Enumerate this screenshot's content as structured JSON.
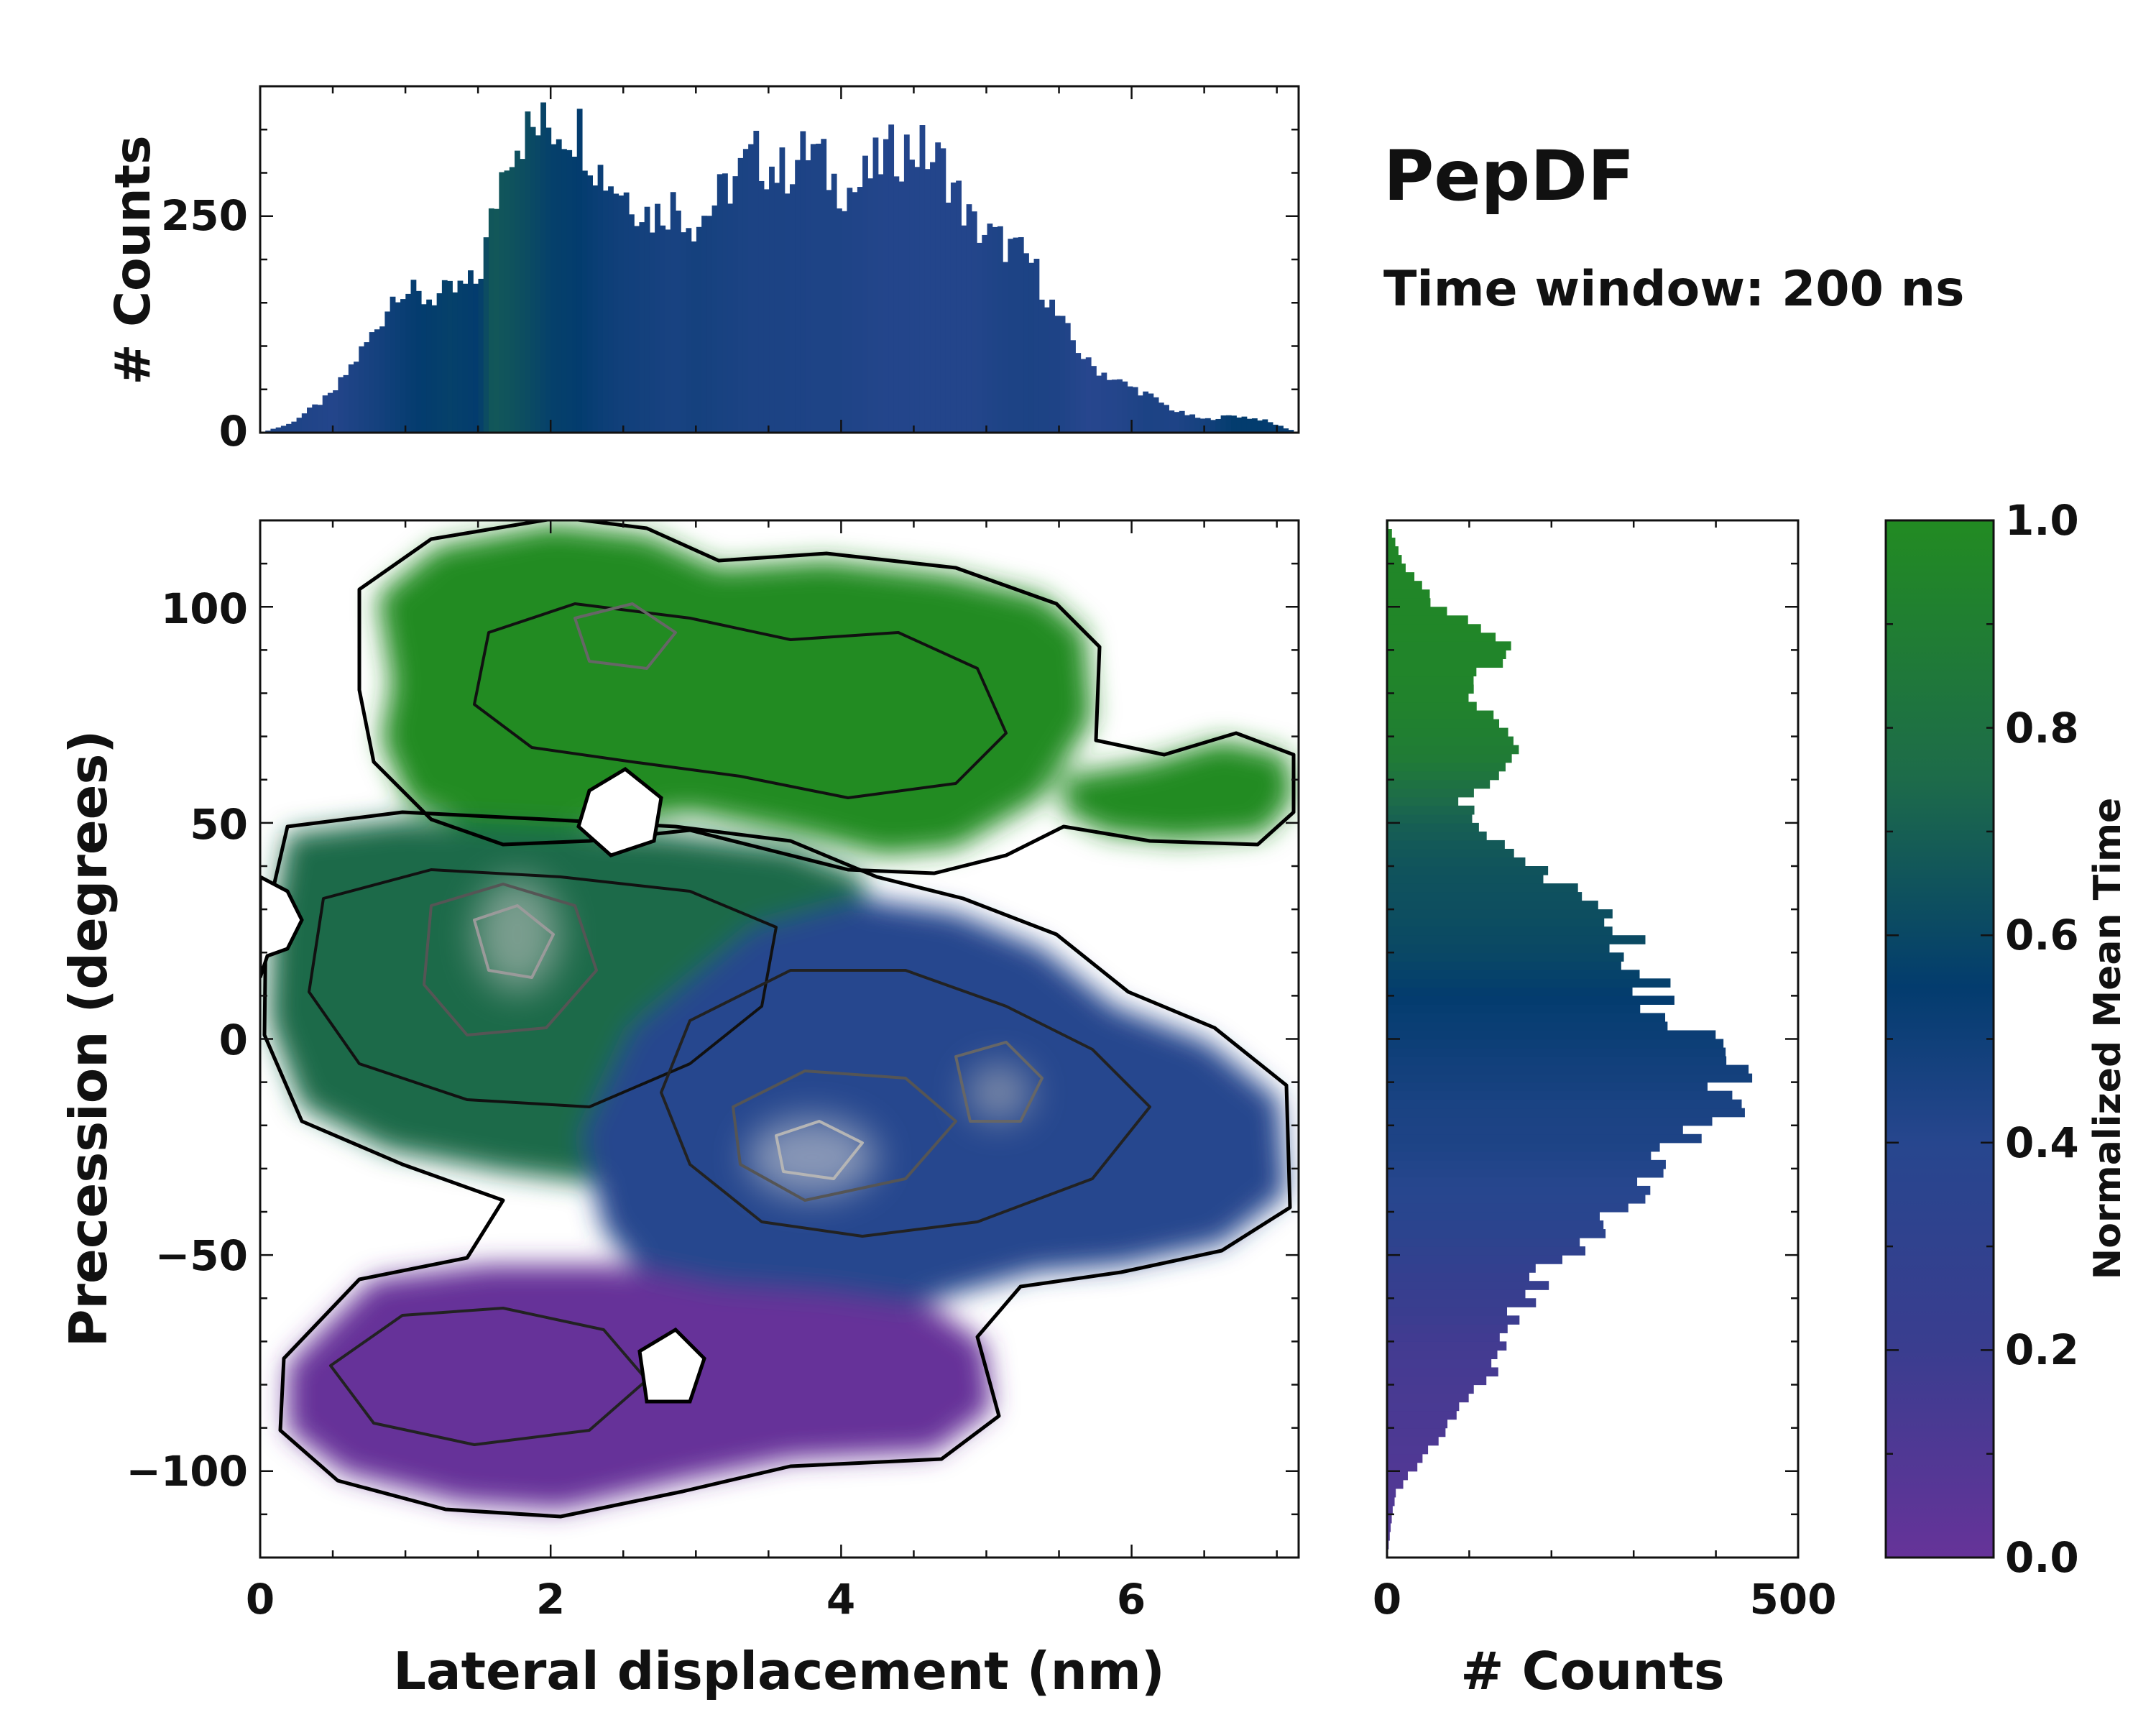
{
  "chart_data": [
    {
      "type": "heatmap",
      "name": "joint-distribution",
      "xlabel": "Lateral displacement (nm)",
      "ylabel": "Precession (degrees)",
      "xlim": [
        0,
        7.15
      ],
      "ylim": [
        -120,
        120
      ],
      "x_ticks": [
        0,
        2,
        4,
        6
      ],
      "x_tick_labels": [
        "0",
        "2",
        "4",
        "6"
      ],
      "y_ticks": [
        -100,
        -50,
        0,
        50,
        100
      ],
      "y_tick_labels": [
        "−100",
        "−50",
        "0",
        "50",
        "100"
      ],
      "color_meaning": "Normalized Mean Time",
      "regions": [
        {
          "label": "upper lobe",
          "x_range": [
            0.7,
            5.9
          ],
          "y_range": [
            48,
            118
          ],
          "mean_time": 0.95
        },
        {
          "label": "right arm",
          "x_range": [
            5.6,
            7.1
          ],
          "y_range": [
            45,
            70
          ],
          "mean_time": 0.95
        },
        {
          "label": "middle band",
          "x_range": [
            0.0,
            4.3
          ],
          "y_range": [
            -30,
            50
          ],
          "mean_time": 0.65
        },
        {
          "label": "lower-right lobe",
          "x_range": [
            2.5,
            7.0
          ],
          "y_range": [
            -50,
            32
          ],
          "mean_time": 0.4
        },
        {
          "label": "bottom lobe",
          "x_range": [
            0.1,
            5.3
          ],
          "y_range": [
            -110,
            -48
          ],
          "mean_time": 0.12
        }
      ],
      "density_peaks": [
        {
          "x": 1.75,
          "y": 28
        },
        {
          "x": 3.8,
          "y": -30
        },
        {
          "x": 5.1,
          "y": -12
        }
      ]
    },
    {
      "type": "bar",
      "name": "top-marginal-histogram",
      "xlabel": "",
      "ylabel": "# Counts",
      "xlim": [
        0,
        7.15
      ],
      "ylim": [
        0,
        400
      ],
      "y_ticks": [
        0,
        250
      ],
      "y_tick_labels": [
        "0",
        "250"
      ],
      "x_control": [
        0,
        0.2,
        0.5,
        0.8,
        0.95,
        1.1,
        1.3,
        1.5,
        1.6,
        1.7,
        1.8,
        2.0,
        2.2,
        2.35,
        2.5,
        2.7,
        2.85,
        3.0,
        3.2,
        3.4,
        3.6,
        3.8,
        3.95,
        4.1,
        4.3,
        4.5,
        4.7,
        4.9,
        5.1,
        5.3,
        5.5,
        5.7,
        5.9,
        6.1,
        6.3,
        6.5,
        6.7,
        6.9,
        7.15
      ],
      "counts_control": [
        0,
        10,
        45,
        120,
        170,
        155,
        160,
        175,
        250,
        330,
        345,
        355,
        350,
        300,
        280,
        250,
        265,
        240,
        280,
        320,
        300,
        330,
        290,
        280,
        320,
        330,
        310,
        240,
        220,
        200,
        130,
        80,
        60,
        45,
        25,
        15,
        20,
        15,
        0
      ],
      "color_control": [
        0.45,
        0.45,
        0.42,
        0.5,
        0.55,
        0.6,
        0.62,
        0.6,
        0.72,
        0.7,
        0.68,
        0.62,
        0.6,
        0.55,
        0.52,
        0.5,
        0.48,
        0.5,
        0.48,
        0.46,
        0.46,
        0.45,
        0.45,
        0.44,
        0.42,
        0.42,
        0.42,
        0.42,
        0.45,
        0.46,
        0.45,
        0.4,
        0.42,
        0.46,
        0.45,
        0.5,
        0.6,
        0.6,
        0.55
      ]
    },
    {
      "type": "bar",
      "name": "right-marginal-histogram",
      "orientation": "horizontal",
      "xlabel": "# Counts",
      "ylabel": "",
      "xlim": [
        0,
        500
      ],
      "ylim": [
        -120,
        120
      ],
      "x_ticks": [
        0,
        500
      ],
      "x_tick_labels": [
        "0",
        "500"
      ],
      "y_control": [
        -120,
        -105,
        -100,
        -90,
        -80,
        -70,
        -60,
        -55,
        -50,
        -45,
        -40,
        -35,
        -30,
        -25,
        -20,
        -15,
        -10,
        -5,
        0,
        5,
        10,
        20,
        30,
        40,
        50,
        55,
        60,
        65,
        70,
        75,
        80,
        85,
        90,
        95,
        100,
        105,
        110,
        115,
        120
      ],
      "counts_control": [
        0,
        10,
        30,
        70,
        120,
        140,
        170,
        190,
        210,
        260,
        290,
        350,
        320,
        340,
        390,
        400,
        440,
        420,
        370,
        345,
        320,
        300,
        265,
        180,
        110,
        90,
        120,
        160,
        140,
        120,
        100,
        110,
        160,
        120,
        60,
        40,
        20,
        10,
        0
      ],
      "color_control": [
        0.1,
        0.1,
        0.1,
        0.12,
        0.14,
        0.16,
        0.22,
        0.25,
        0.3,
        0.35,
        0.38,
        0.4,
        0.42,
        0.45,
        0.46,
        0.47,
        0.5,
        0.52,
        0.55,
        0.57,
        0.6,
        0.65,
        0.68,
        0.7,
        0.75,
        0.8,
        0.85,
        0.9,
        0.92,
        0.94,
        0.95,
        0.96,
        0.96,
        0.97,
        0.97,
        0.97,
        0.97,
        0.97,
        0.97
      ]
    },
    {
      "type": "colorbar",
      "name": "colorbar",
      "label": "Normalized Mean Time",
      "range": [
        0,
        1
      ],
      "ticks": [
        0,
        0.2,
        0.4,
        0.6,
        0.8,
        1
      ],
      "tick_labels": [
        "0.0",
        "0.2",
        "0.4",
        "0.6",
        "0.8",
        "1.0"
      ],
      "colormap": [
        "#663399",
        "#3a3d8f",
        "#27468e",
        "#033c6e",
        "#1d6b4a",
        "#228b22"
      ]
    }
  ],
  "annotation": {
    "title": "PepDF",
    "subtitle": "Time window: 200 ns"
  }
}
